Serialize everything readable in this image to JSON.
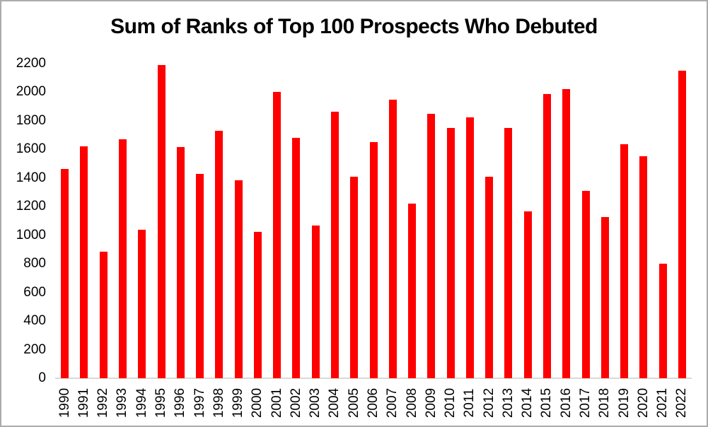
{
  "chart_data": {
    "type": "bar",
    "title": "Sum of Ranks of Top 100 Prospects Who Debuted",
    "xlabel": "",
    "ylabel": "",
    "categories": [
      "1990",
      "1991",
      "1992",
      "1993",
      "1994",
      "1995",
      "1996",
      "1997",
      "1998",
      "1999",
      "2000",
      "2001",
      "2002",
      "2003",
      "2004",
      "2005",
      "2006",
      "2007",
      "2008",
      "2009",
      "2010",
      "2011",
      "2012",
      "2013",
      "2014",
      "2015",
      "2016",
      "2017",
      "2018",
      "2019",
      "2020",
      "2021",
      "2022"
    ],
    "values": [
      1465,
      1620,
      885,
      1670,
      1040,
      2190,
      1615,
      1430,
      1730,
      1385,
      1025,
      2000,
      1680,
      1070,
      1865,
      1410,
      1650,
      1950,
      1220,
      1850,
      1750,
      1825,
      1410,
      1750,
      1165,
      1985,
      2020,
      1310,
      1125,
      1635,
      1550,
      800,
      2150
    ],
    "ylim": [
      0,
      2200
    ],
    "ytick_step": 200,
    "ytick_labels": [
      "0",
      "200",
      "400",
      "600",
      "800",
      "1000",
      "1200",
      "1400",
      "1600",
      "1800",
      "2000",
      "2200"
    ],
    "grid": false,
    "legend": false,
    "x_labels_rotation_degrees": 90,
    "colors": {
      "bar": "#FF0000",
      "axis_line": "#D9D9D9",
      "text": "#000000",
      "background": "#FFFFFF",
      "frame_border": "#ABABAB"
    }
  }
}
